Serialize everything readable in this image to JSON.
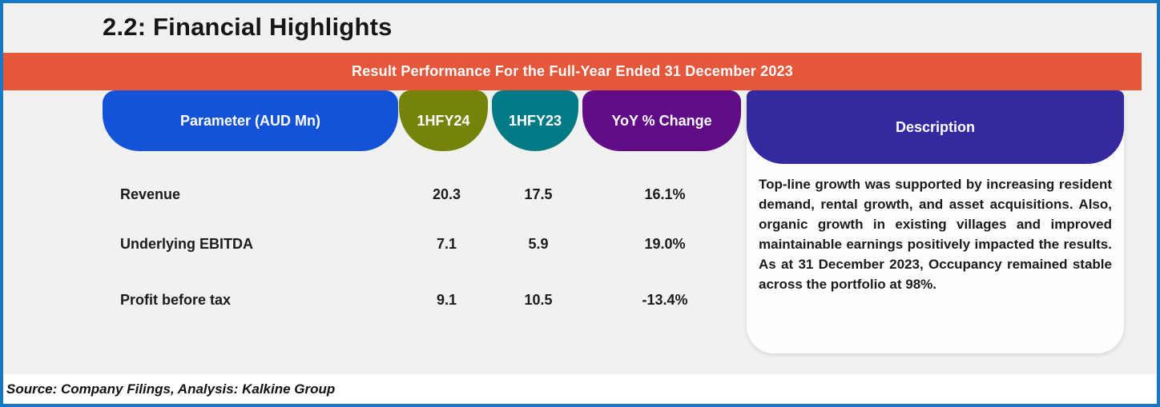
{
  "frame": {
    "border_color": "#1779c4",
    "background_color": "#f1f1ef"
  },
  "title": "2.2: Financial Highlights",
  "banner": {
    "text": "Result Performance For the Full-Year Ended 31 December 2023",
    "color": "#e5573a"
  },
  "table": {
    "columns": [
      {
        "label": "Parameter (AUD Mn)",
        "color": "#1453d8"
      },
      {
        "label": "1HFY24",
        "color": "#75830b"
      },
      {
        "label": "1HFY23",
        "color": "#027a85"
      },
      {
        "label": "YoY % Change",
        "color": "#610c87"
      }
    ],
    "rows": [
      {
        "parameter": "Revenue",
        "hfy24": "20.3",
        "hfy23": "17.5",
        "yoy": "16.1%"
      },
      {
        "parameter": "Underlying EBITDA",
        "hfy24": "7.1",
        "hfy23": "5.9",
        "yoy": "19.0%"
      },
      {
        "parameter": "Profit before tax",
        "hfy24": "9.1",
        "hfy23": "10.5",
        "yoy": "-13.4%"
      }
    ]
  },
  "description": {
    "header": "Description",
    "header_color": "#34299e",
    "text": "Top-line growth was supported by increasing resident demand, rental growth, and asset acquisitions. Also, organic growth in existing villages and improved maintainable earnings positively impacted the results. As at 31 December 2023, Occupancy remained stable across the portfolio at 98%."
  },
  "footer": {
    "source": "Source: Company Filings, Analysis: Kalkine Group"
  }
}
